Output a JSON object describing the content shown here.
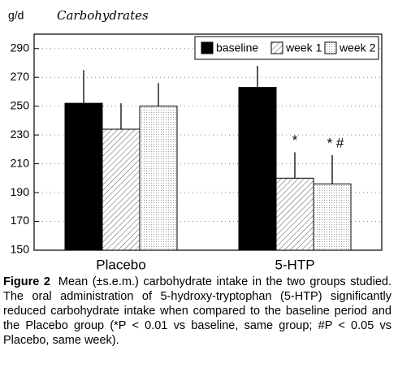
{
  "chart_data": {
    "type": "bar",
    "y_unit": "g/d",
    "y_label": "Carbohydrates",
    "categories": [
      "Placebo",
      "5-HTP"
    ],
    "series": [
      {
        "name": "baseline",
        "color": "#000000",
        "pattern": "solid",
        "values": [
          252,
          263
        ],
        "errors": [
          23,
          15
        ]
      },
      {
        "name": "week 1",
        "color": "#000000",
        "pattern": "hatch",
        "values": [
          234,
          200
        ],
        "errors": [
          18,
          18
        ]
      },
      {
        "name": "week 2",
        "color": "#000000",
        "pattern": "dots",
        "values": [
          250,
          196
        ],
        "errors": [
          16,
          20
        ]
      }
    ],
    "ylim": [
      150,
      300
    ],
    "yticks": [
      150,
      170,
      190,
      210,
      230,
      250,
      270,
      290
    ],
    "grid": true,
    "legend": "upper right",
    "annotations": [
      "*",
      "* #"
    ]
  },
  "caption": {
    "label": "Figure 2",
    "text": "Mean (±s.e.m.) carbohydrate intake in the two groups studied. The oral administration of 5-hydroxy-tryptophan (5-HTP) significantly reduced carbohydrate intake when compared to the baseline period and the Placebo group (*P < 0.01 vs baseline, same group; #P < 0.05 vs Placebo, same week)."
  }
}
